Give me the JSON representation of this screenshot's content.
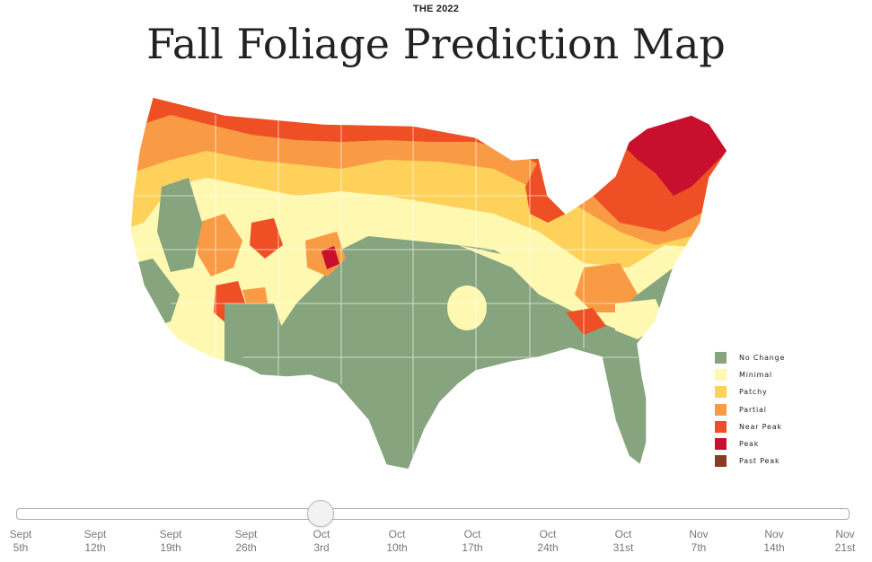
{
  "header": {
    "eyebrow": "THE 2022",
    "title": "Fall Foliage Prediction Map"
  },
  "colors": {
    "no_change": "#86a57e",
    "minimal": "#fff8b0",
    "patchy": "#fdd15a",
    "partial": "#f99a44",
    "near_peak": "#ef4f24",
    "peak": "#c8102e",
    "past_peak": "#8c3b22"
  },
  "legend": {
    "items": [
      {
        "label": "No Change",
        "color": "#86a57e"
      },
      {
        "label": "Minimal",
        "color": "#fff8b0"
      },
      {
        "label": "Patchy",
        "color": "#fdd15a"
      },
      {
        "label": "Partial",
        "color": "#f99a44"
      },
      {
        "label": "Near Peak",
        "color": "#ef4f24"
      },
      {
        "label": "Peak",
        "color": "#c8102e"
      },
      {
        "label": "Past Peak",
        "color": "#8c3b22"
      }
    ]
  },
  "slider": {
    "selected_index": 4,
    "ticks": [
      {
        "line1": "Sept",
        "line2": "5th"
      },
      {
        "line1": "Sept",
        "line2": "12th"
      },
      {
        "line1": "Sept",
        "line2": "19th"
      },
      {
        "line1": "Sept",
        "line2": "26th"
      },
      {
        "line1": "Oct",
        "line2": "3rd"
      },
      {
        "line1": "Oct",
        "line2": "10th"
      },
      {
        "line1": "Oct",
        "line2": "17th"
      },
      {
        "line1": "Oct",
        "line2": "24th"
      },
      {
        "line1": "Oct",
        "line2": "31st"
      },
      {
        "line1": "Nov",
        "line2": "7th"
      },
      {
        "line1": "Nov",
        "line2": "14th"
      },
      {
        "line1": "Nov",
        "line2": "21st"
      }
    ]
  }
}
